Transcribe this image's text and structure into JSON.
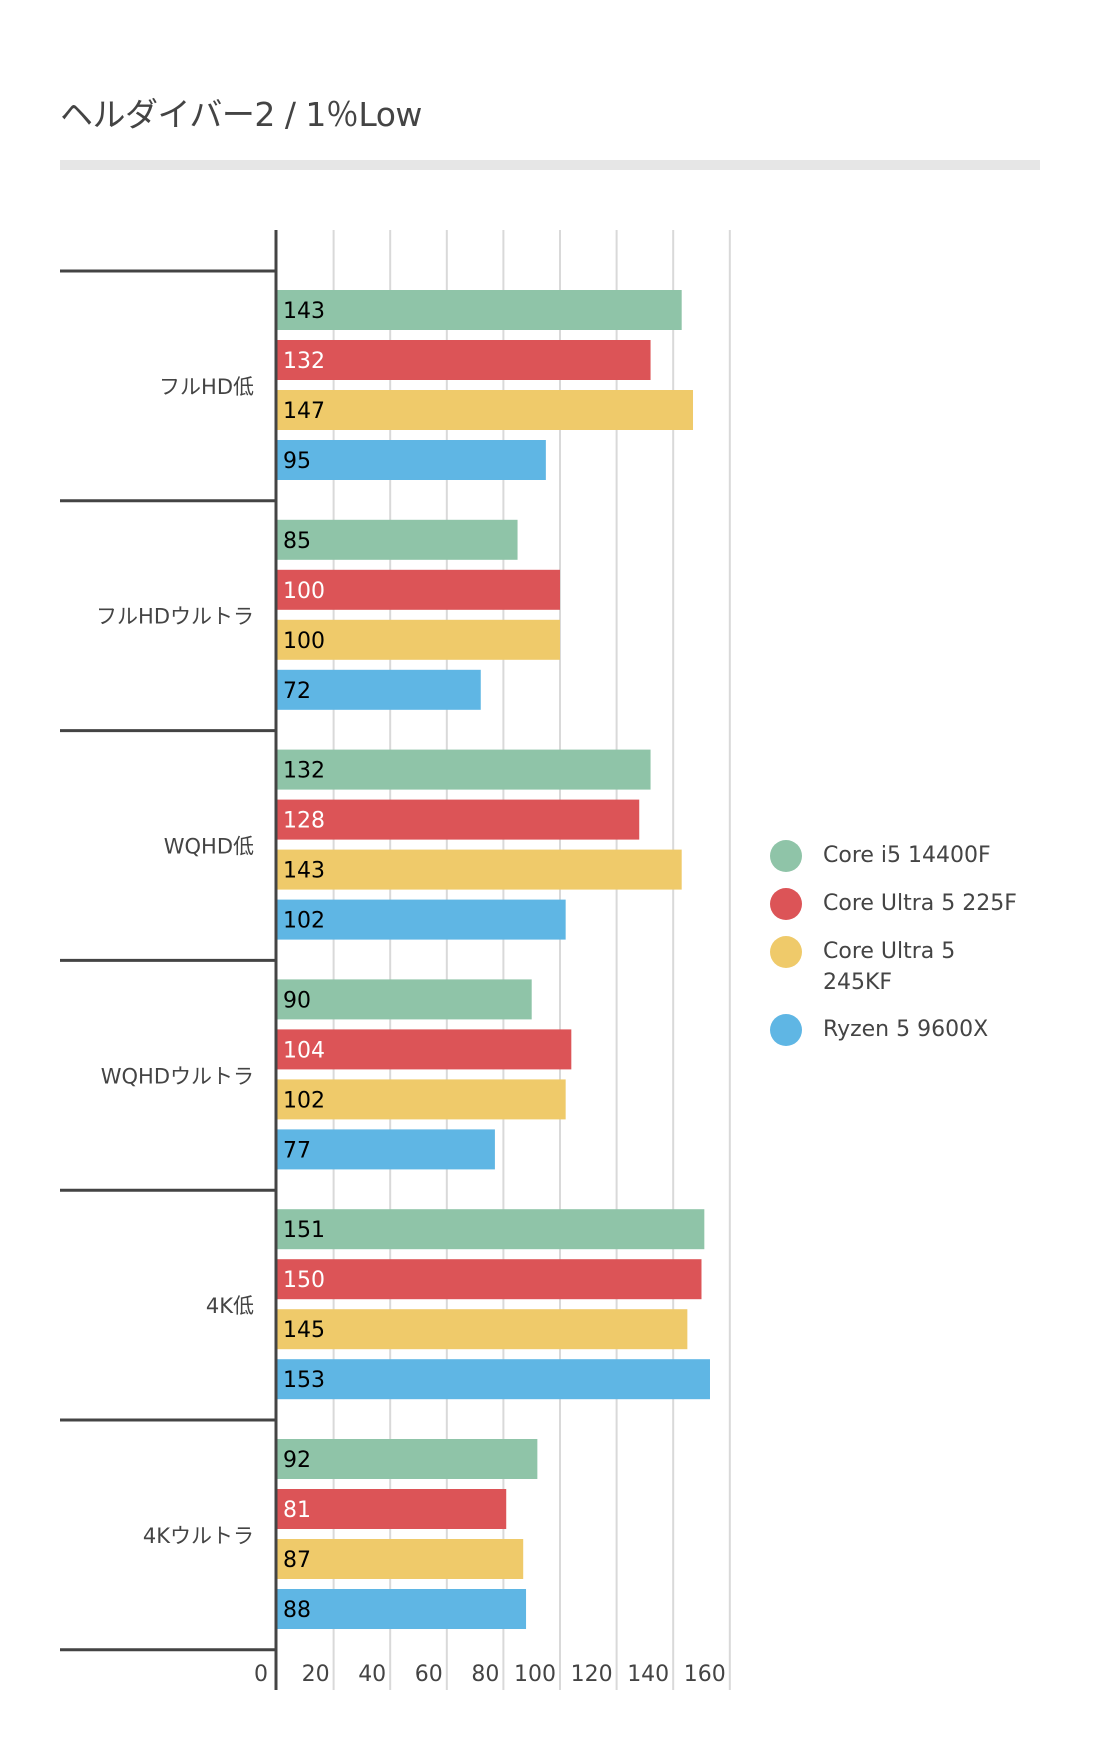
{
  "title": "ヘルダイバー2 /  1％Low",
  "chart_data": {
    "type": "bar",
    "orientation": "horizontal",
    "title": "ヘルダイバー2 /  1％Low",
    "xlabel": "",
    "ylabel": "",
    "categories": [
      "フルHD低",
      "フルHDウルトラ",
      "WQHD低",
      "WQHDウルトラ",
      "4K低",
      "4Kウルトラ"
    ],
    "series": [
      {
        "name": "Core i5 14400F",
        "color": "#8fc4a8",
        "label_color": "#000000",
        "values": [
          143,
          85,
          132,
          90,
          151,
          92
        ]
      },
      {
        "name": "Core Ultra 5 225F",
        "color": "#dc5457",
        "label_color": "#ffffff",
        "values": [
          132,
          100,
          128,
          104,
          150,
          81
        ]
      },
      {
        "name": "Core Ultra 5 245KF",
        "color": "#efca6a",
        "label_color": "#000000",
        "values": [
          147,
          100,
          143,
          102,
          145,
          87
        ]
      },
      {
        "name": "Ryzen 5 9600X",
        "color": "#5fb6e4",
        "label_color": "#000000",
        "values": [
          95,
          72,
          102,
          77,
          153,
          88
        ]
      }
    ],
    "xlim": [
      0,
      160
    ],
    "xticks": [
      "0",
      "20",
      "40",
      "60",
      "80",
      "100",
      "120",
      "140",
      "160"
    ],
    "grid": true,
    "legend_position": "right"
  },
  "legend": {
    "items": [
      {
        "label": "Core i5 14400F",
        "color": "#8fc4a8"
      },
      {
        "label": "Core Ultra 5 225F",
        "color": "#dc5457"
      },
      {
        "label": "Core Ultra 5 245KF",
        "label_line1": "Core Ultra 5",
        "label_line2": "245KF",
        "color": "#efca6a"
      },
      {
        "label": "Ryzen 5 9600X",
        "color": "#5fb6e4"
      }
    ]
  }
}
